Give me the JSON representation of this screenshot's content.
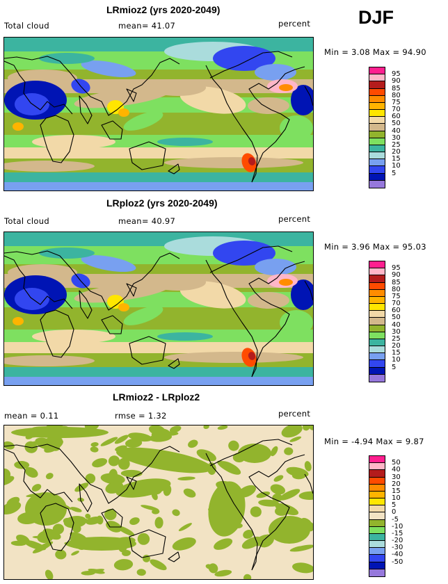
{
  "season": "DJF",
  "panels": [
    {
      "title": "LRmioz2 (yrs 2020-2049)",
      "left": "Total cloud",
      "mid": "mean=  41.07",
      "right": "percent",
      "stats": "Min =    3.08  Max =   94.90",
      "legend": [
        "95",
        "90",
        "85",
        "80",
        "75",
        "70",
        "60",
        "50",
        "40",
        "30",
        "25",
        "20",
        "15",
        "10",
        "5"
      ],
      "colors": [
        "#ff1f8f",
        "#ffb6c8",
        "#b41c1c",
        "#ff4b00",
        "#ff8c00",
        "#ffb400",
        "#ffe600",
        "#f2d9a8",
        "#d3b88c",
        "#92b42d",
        "#7ee060",
        "#3cb4a0",
        "#aadcdc",
        "#78a0f0",
        "#3246f0",
        "#0014b4",
        "#9678dc"
      ],
      "field": "clouds"
    },
    {
      "title": "LRploz2 (yrs 2020-2049)",
      "left": "Total cloud",
      "mid": "mean=  40.97",
      "right": "percent",
      "stats": "Min =    3.96  Max =   95.03",
      "legend": [
        "95",
        "90",
        "85",
        "80",
        "75",
        "70",
        "60",
        "50",
        "40",
        "30",
        "25",
        "20",
        "15",
        "10",
        "5"
      ],
      "colors": [
        "#ff1f8f",
        "#ffb6c8",
        "#b41c1c",
        "#ff4b00",
        "#ff8c00",
        "#ffb400",
        "#ffe600",
        "#f2d9a8",
        "#d3b88c",
        "#92b42d",
        "#7ee060",
        "#3cb4a0",
        "#aadcdc",
        "#78a0f0",
        "#3246f0",
        "#0014b4",
        "#9678dc"
      ],
      "field": "clouds"
    },
    {
      "title": "LRmioz2 - LRploz2",
      "left": "mean =    0.11",
      "mid": "rmse =    1.32",
      "right": "percent",
      "stats": "Min =   -4.94  Max =    9.87",
      "legend": [
        "50",
        "40",
        "30",
        "20",
        "15",
        "10",
        "5",
        "0",
        "-5",
        "-10",
        "-15",
        "-20",
        "-30",
        "-40",
        "-50"
      ],
      "colors": [
        "#ff1f8f",
        "#ffb6c8",
        "#b41c1c",
        "#ff4b00",
        "#ff8c00",
        "#ffb400",
        "#ffe600",
        "#f2d9a8",
        "#f2e3c4",
        "#92b42d",
        "#7ee060",
        "#3cb4a0",
        "#aadcdc",
        "#78a0f0",
        "#3246f0",
        "#0014b4",
        "#9678dc"
      ],
      "field": "diff"
    }
  ]
}
